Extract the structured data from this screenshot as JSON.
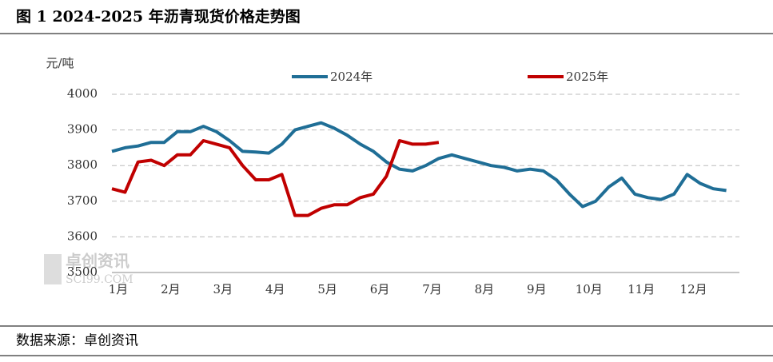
{
  "chart_data": {
    "type": "line",
    "title": "图 1 2024-2025 年沥青现货价格走势图",
    "y_label": "元/吨",
    "source": "数据来源：卓创资讯",
    "watermark": [
      "卓创资讯",
      "SCI99.COM"
    ],
    "categories": [
      "1月",
      null,
      null,
      null,
      "2月",
      null,
      null,
      null,
      "3月",
      null,
      null,
      null,
      "4月",
      null,
      null,
      null,
      "5月",
      null,
      null,
      null,
      "6月",
      null,
      null,
      null,
      "7月",
      null,
      null,
      null,
      "8月",
      null,
      null,
      null,
      "9月",
      null,
      null,
      null,
      "10月",
      null,
      null,
      null,
      "11月",
      null,
      null,
      null,
      "12月",
      null,
      null,
      null
    ],
    "series": [
      {
        "name": "2024年",
        "color": "#1f6e96",
        "values": [
          3840,
          3850,
          3855,
          3865,
          3865,
          3895,
          3895,
          3910,
          3895,
          3870,
          3840,
          3838,
          3835,
          3860,
          3900,
          3910,
          3920,
          3905,
          3885,
          3860,
          3840,
          3810,
          3790,
          3785,
          3800,
          3820,
          3830,
          3820,
          3810,
          3800,
          3795,
          3785,
          3790,
          3785,
          3760,
          3720,
          3685,
          3700,
          3740,
          3765,
          3720,
          3710,
          3705,
          3720,
          3775,
          3750,
          3735,
          3730
        ]
      },
      {
        "name": "2025年",
        "color": "#c00000",
        "values": [
          3735,
          3725,
          3810,
          3815,
          3800,
          3830,
          3830,
          3870,
          3860,
          3850,
          3800,
          3760,
          3760,
          3775,
          3660,
          3660,
          3680,
          3690,
          3690,
          3710,
          3720,
          3770,
          3870,
          3860,
          3860,
          3865,
          null,
          null,
          null,
          null,
          null,
          null,
          null,
          null,
          null,
          null,
          null,
          null,
          null,
          null,
          null,
          null,
          null,
          null,
          null,
          null,
          null,
          null
        ]
      }
    ],
    "ylim": [
      3500,
      4000
    ],
    "yticks": [
      3500,
      3600,
      3700,
      3800,
      3900,
      4000
    ],
    "grid": true,
    "legend": "top"
  }
}
